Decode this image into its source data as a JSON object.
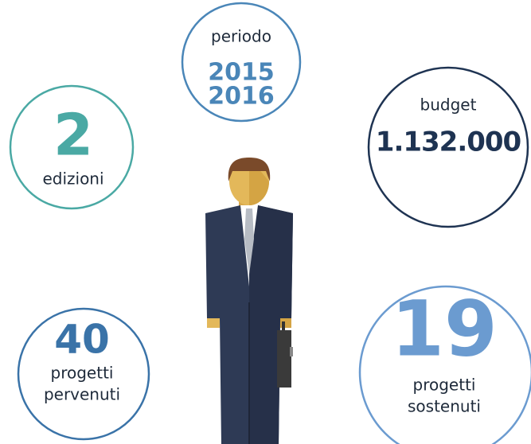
{
  "stats": [
    {
      "label": "periodo",
      "value": [
        "2015",
        "2016"
      ]
    },
    {
      "label": "budget",
      "value": "1.132.000"
    },
    {
      "value": "2",
      "label": "edizioni"
    },
    {
      "value": "40",
      "label": [
        "progetti",
        "pervenuti"
      ]
    },
    {
      "value": "19",
      "label": [
        "progetti",
        "sostenuti"
      ]
    }
  ]
}
